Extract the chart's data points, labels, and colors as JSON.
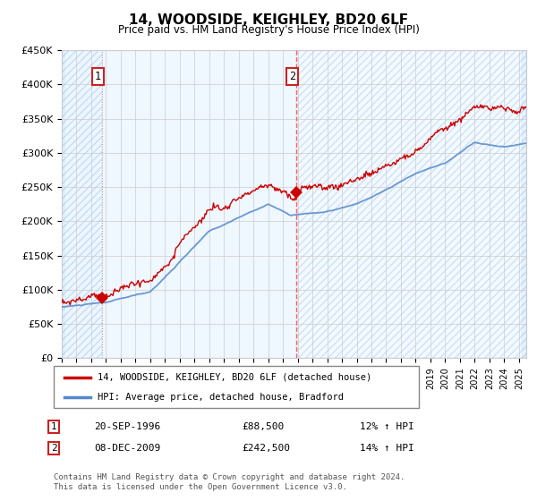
{
  "title": "14, WOODSIDE, KEIGHLEY, BD20 6LF",
  "subtitle": "Price paid vs. HM Land Registry's House Price Index (HPI)",
  "sale1_date": "20-SEP-1996",
  "sale1_price": 88500,
  "sale1_hpi": "12% ↑ HPI",
  "sale2_date": "08-DEC-2009",
  "sale2_price": 242500,
  "sale2_hpi": "14% ↑ HPI",
  "legend_line1": "14, WOODSIDE, KEIGHLEY, BD20 6LF (detached house)",
  "legend_line2": "HPI: Average price, detached house, Bradford",
  "footnote": "Contains HM Land Registry data © Crown copyright and database right 2024.\nThis data is licensed under the Open Government Licence v3.0.",
  "line_color_red": "#cc0000",
  "line_color_blue": "#5588cc",
  "fill_color_blue": "#ddeeff",
  "hatch_fill_color": "#ddeeff",
  "dashed_line_color_sale2": "#ff4444",
  "dashed_line_color_sale1": "#aaaaaa",
  "ylim_min": 0,
  "ylim_max": 450000,
  "yticks": [
    0,
    50000,
    100000,
    150000,
    200000,
    250000,
    300000,
    350000,
    400000,
    450000
  ],
  "ytick_labels": [
    "£0",
    "£50K",
    "£100K",
    "£150K",
    "£200K",
    "£250K",
    "£300K",
    "£350K",
    "£400K",
    "£450K"
  ],
  "sale1_x": 1996.72,
  "sale2_x": 2009.92,
  "xmin": 1994,
  "xmax": 2025.5
}
